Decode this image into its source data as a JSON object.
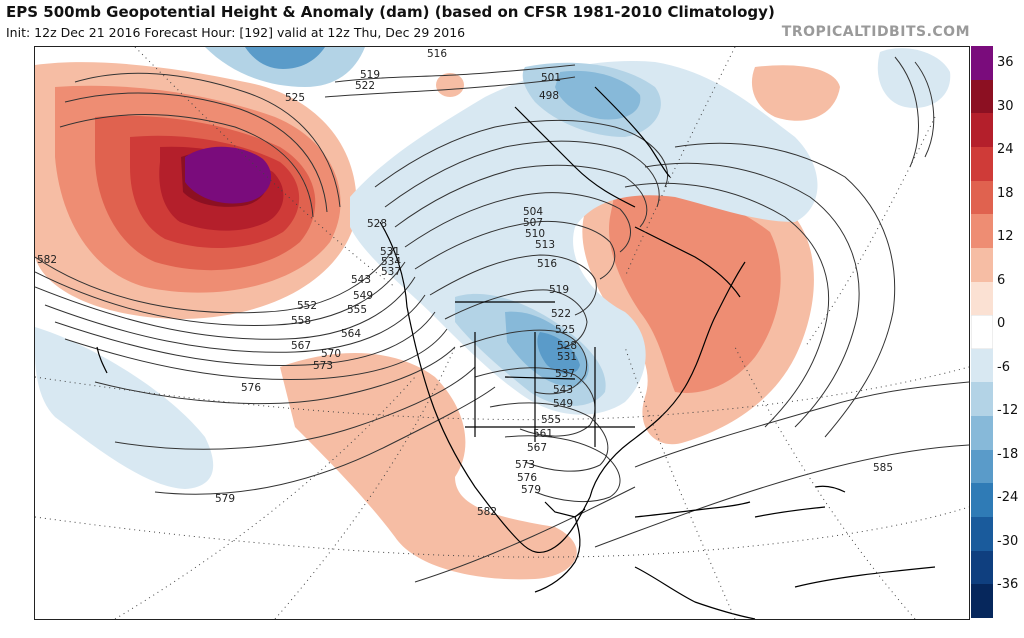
{
  "header": {
    "title": "EPS 500mb Geopotential Height & Anomaly (dam) (based on CFSR 1981-2010 Climatology)",
    "subtitle": "Init: 12z Dec 21 2016   Forecast Hour: [192]   valid at 12z Thu, Dec 29 2016",
    "credit": "TROPICALTIDBITS.COM"
  },
  "colorbar": {
    "ticks": [
      "36",
      "30",
      "24",
      "18",
      "12",
      "6",
      "0",
      "-6",
      "-12",
      "-18",
      "-24",
      "-30",
      "-36"
    ],
    "colors": [
      "#7a0c7c",
      "#8c1022",
      "#b41f2b",
      "#cf3b38",
      "#e0624f",
      "#ee8d73",
      "#f6bda4",
      "#fbe1d3",
      "#ffffff",
      "#d8e8f2",
      "#b3d3e6",
      "#87b9d9",
      "#5a9bc9",
      "#2f7bb6",
      "#1a5b9c",
      "#0f3f7f",
      "#06275c"
    ]
  },
  "map": {
    "contour_labels": [
      "516",
      "519",
      "522",
      "525",
      "528",
      "531",
      "534",
      "537",
      "543",
      "549",
      "552",
      "555",
      "558",
      "564",
      "567",
      "570",
      "573",
      "576",
      "579",
      "582",
      "585",
      "501",
      "498",
      "504",
      "507",
      "510",
      "513",
      "516",
      "519",
      "522",
      "525",
      "528",
      "531",
      "537",
      "543",
      "549",
      "555",
      "561",
      "567",
      "573",
      "576",
      "579",
      "582"
    ]
  }
}
